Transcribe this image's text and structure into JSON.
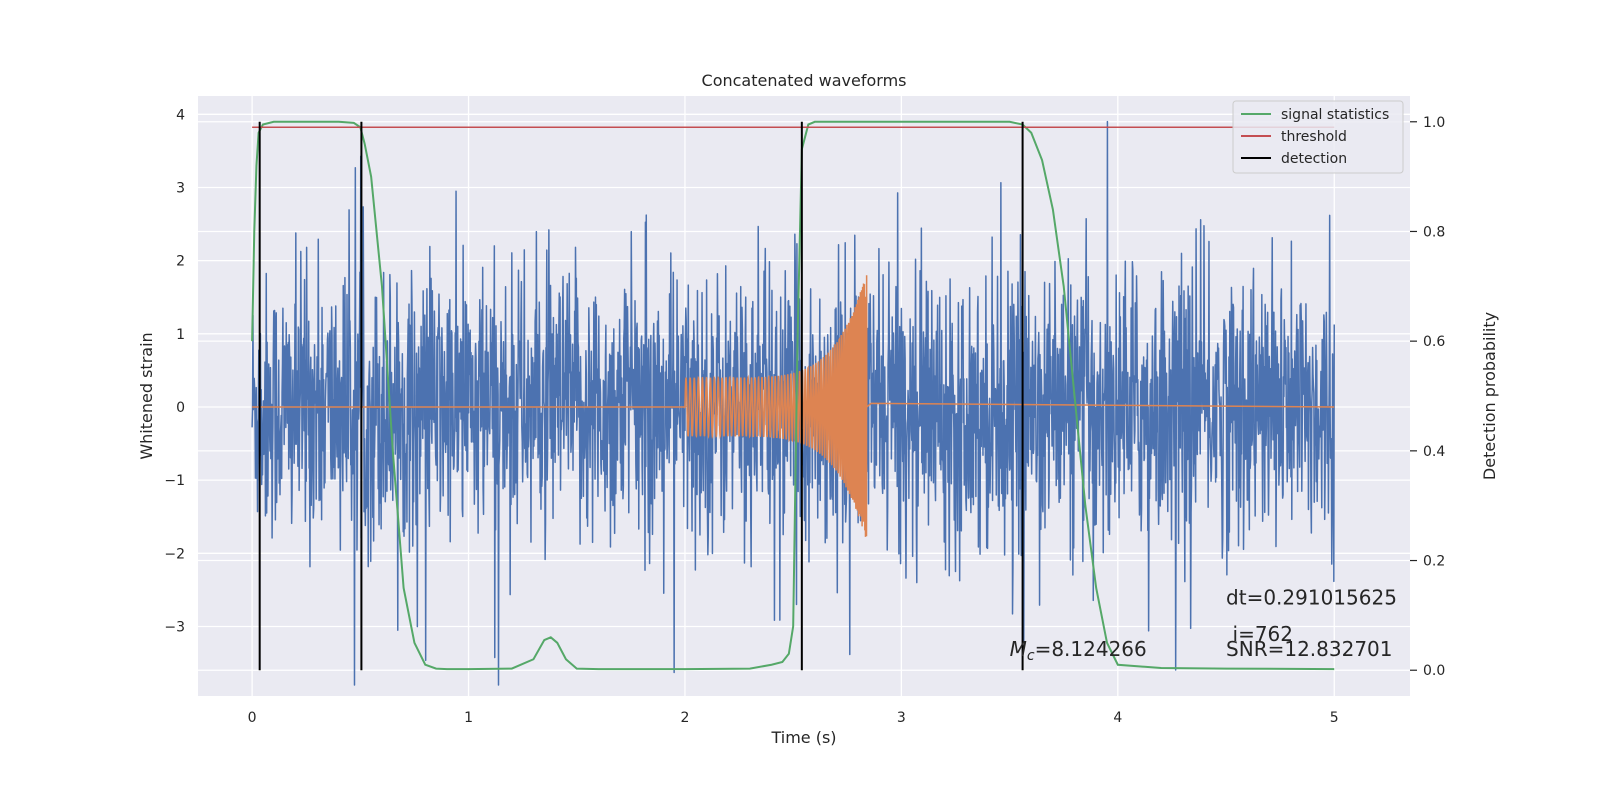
{
  "chart_data": {
    "type": "line",
    "title": "Concatenated waveforms",
    "xlabel": "Time (s)",
    "ylabel": "Whitened strain",
    "y2label": "Detection probability",
    "xlim": [
      -0.25,
      5.35
    ],
    "ylim": [
      -3.95,
      4.25
    ],
    "y2lim": [
      -0.047,
      1.047
    ],
    "xticks": [
      0,
      1,
      2,
      3,
      4,
      5
    ],
    "xtick_labels": [
      "0",
      "1",
      "2",
      "3",
      "4",
      "5"
    ],
    "yticks": [
      -3,
      -2,
      -1,
      0,
      1,
      2,
      3,
      4
    ],
    "ytick_labels": [
      "−3",
      "−2",
      "−1",
      "0",
      "1",
      "2",
      "3",
      "4"
    ],
    "y2ticks": [
      0.0,
      0.2,
      0.4,
      0.6,
      0.8,
      1.0
    ],
    "y2tick_labels": [
      "0.0",
      "0.2",
      "0.4",
      "0.6",
      "0.8",
      "1.0"
    ],
    "grid": true,
    "legend_position": "top-right",
    "colors": {
      "background": "#eaeaf2",
      "grid": "#ffffff",
      "strain": "#4c72b0",
      "template": "#dd8452",
      "signal_statistics": "#55a868",
      "threshold": "#c44e52",
      "detection": "#000000"
    },
    "noise": {
      "t_start": 0.0,
      "t_end": 5.0,
      "typical_amplitude": 1.0,
      "max_excursion": 4.0
    },
    "chirp": {
      "t_start": 2.0,
      "t_merger": 2.84,
      "amplitude_start": 0.4,
      "amplitude_peak": 1.85,
      "cycles": 70
    },
    "series": [
      {
        "name": "signal statistics",
        "axis": "right",
        "x": [
          0.0,
          0.01,
          0.02,
          0.03,
          0.05,
          0.1,
          0.2,
          0.4,
          0.47,
          0.5,
          0.52,
          0.55,
          0.6,
          0.65,
          0.7,
          0.75,
          0.8,
          0.85,
          0.9,
          1.0,
          1.2,
          1.3,
          1.35,
          1.38,
          1.41,
          1.45,
          1.5,
          1.6,
          2.0,
          2.3,
          2.4,
          2.45,
          2.48,
          2.5,
          2.52,
          2.54,
          2.57,
          2.6,
          2.8,
          3.0,
          3.3,
          3.5,
          3.56,
          3.6,
          3.65,
          3.7,
          3.75,
          3.8,
          3.85,
          3.9,
          3.95,
          4.0,
          4.2,
          4.5,
          5.0
        ],
        "y": [
          0.6,
          0.8,
          0.92,
          0.98,
          0.995,
          1.0,
          1.0,
          1.0,
          0.998,
          0.99,
          0.96,
          0.9,
          0.7,
          0.4,
          0.15,
          0.05,
          0.01,
          0.003,
          0.002,
          0.002,
          0.003,
          0.02,
          0.055,
          0.06,
          0.05,
          0.02,
          0.003,
          0.002,
          0.002,
          0.003,
          0.01,
          0.015,
          0.03,
          0.08,
          0.6,
          0.95,
          0.995,
          1.0,
          1.0,
          1.0,
          1.0,
          1.0,
          0.995,
          0.98,
          0.93,
          0.84,
          0.7,
          0.5,
          0.3,
          0.15,
          0.05,
          0.01,
          0.004,
          0.003,
          0.002
        ]
      },
      {
        "name": "threshold",
        "axis": "right",
        "x": [
          0.0,
          5.0
        ],
        "y": [
          0.99,
          0.99
        ]
      },
      {
        "name": "detection",
        "axis": "right",
        "type": "vlines",
        "x": [
          0.035,
          0.505,
          2.54,
          3.56
        ],
        "ymin": 0.0,
        "ymax": 1.0
      }
    ],
    "legend": [
      "signal statistics",
      "threshold",
      "detection"
    ],
    "annotations": [
      {
        "text": "Mc=8.124266",
        "x": 3.5,
        "y": -3.4
      },
      {
        "text": "dt=0.291015625",
        "x": 4.5,
        "y": -2.7
      },
      {
        "text": "i=762",
        "x": 4.53,
        "y": -3.2
      },
      {
        "text": "SNR=12.832701",
        "x": 4.5,
        "y": -3.4
      }
    ]
  }
}
